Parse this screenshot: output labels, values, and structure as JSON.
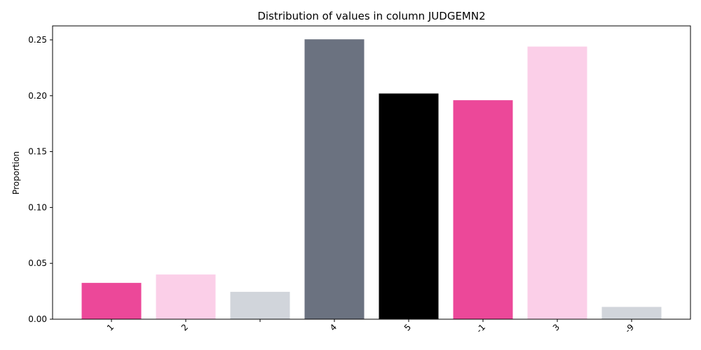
{
  "chart_data": {
    "type": "bar",
    "title": "Distribution of values in column JUDGEMN2",
    "xlabel": "",
    "ylabel": "Proportion",
    "categories": [
      "1",
      "2",
      " ",
      "4",
      "5",
      "-1",
      "3",
      "-9"
    ],
    "values": [
      0.0325,
      0.04,
      0.0245,
      0.2505,
      0.202,
      0.196,
      0.244,
      0.011
    ],
    "colors": [
      "#ec4899",
      "#fbcfe8",
      "#d1d5db",
      "#6b7280",
      "#000000",
      "#ec4899",
      "#fbcfe8",
      "#d1d5db"
    ],
    "ylim": [
      0,
      0.2625
    ],
    "yticks": [
      "0.00",
      "0.05",
      "0.10",
      "0.15",
      "0.20",
      "0.25"
    ],
    "grid": false,
    "legend": "none"
  }
}
